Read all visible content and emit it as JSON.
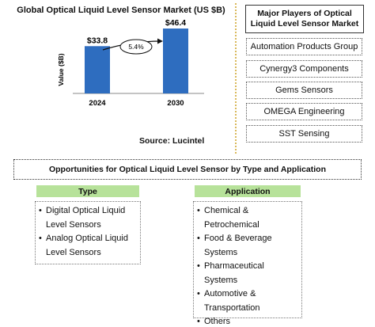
{
  "chart_data": {
    "type": "bar",
    "title": "Global Optical Liquid Level Sensor Market (US $B)",
    "ylabel": "Value ($B)",
    "xlabel": "",
    "categories": [
      "2024",
      "2030"
    ],
    "values": [
      33.8,
      46.4
    ],
    "value_labels": [
      "$33.8",
      "$46.4"
    ],
    "growth_label": "5.4%",
    "ylim": [
      0,
      60
    ],
    "grid": false,
    "bar_color": "#2e6dbf"
  },
  "source": "Source: Lucintel",
  "players": {
    "title": "Major Players of Optical Liquid Level Sensor Market",
    "items": [
      "Automation Products Group",
      "Cynergy3 Components",
      "Gems Sensors",
      "OMEGA Engineering",
      "SST Sensing"
    ]
  },
  "opportunities": {
    "title": "Opportunities for Optical Liquid Level Sensor by Type and Application",
    "type_heading": "Type",
    "type_items": [
      "Digital Optical Liquid Level Sensors",
      "Analog Optical Liquid Level Sensors"
    ],
    "application_heading": "Application",
    "application_items": [
      "Chemical & Petrochemical",
      "Food & Beverage Systems",
      "Pharmaceutical Systems",
      "Automotive & Transportation",
      "Others"
    ]
  },
  "colors": {
    "accent_green": "#b7e29a",
    "divider_gold": "#d9b85a"
  }
}
